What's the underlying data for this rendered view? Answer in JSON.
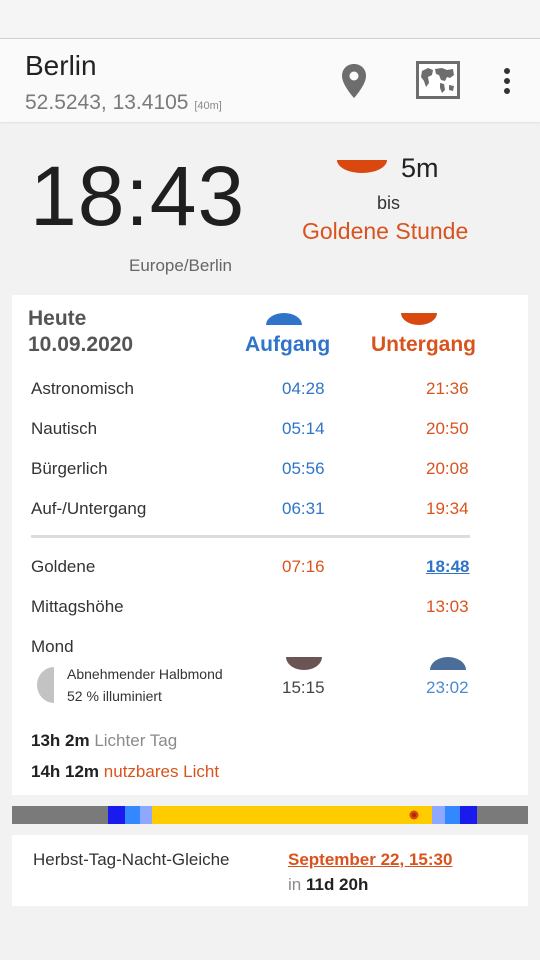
{
  "location": {
    "name": "Berlin",
    "coords": "52.5243, 13.4105",
    "altitude": "[40m]"
  },
  "toolbar": {
    "icons": [
      "location-pin-icon",
      "world-map-icon",
      "overflow-menu-icon"
    ]
  },
  "clock": {
    "time": "18:43",
    "timezone": "Europe/Berlin"
  },
  "next_event": {
    "countdown": "5m",
    "connector": "bis",
    "name": "Goldene Stunde"
  },
  "table": {
    "heute": "Heute",
    "date": "10.09.2020",
    "rise_header": "Aufgang",
    "set_header": "Untergang",
    "rows": [
      {
        "label": "Astronomisch",
        "rise": "04:28",
        "set": "21:36"
      },
      {
        "label": "Nautisch",
        "rise": "05:14",
        "set": "20:50"
      },
      {
        "label": "Bürgerlich",
        "rise": "05:56",
        "set": "20:08"
      },
      {
        "label": "Auf-/Untergang",
        "rise": "06:31",
        "set": "19:34"
      },
      {
        "label": "Goldene",
        "rise": "07:16",
        "set": "18:48"
      },
      {
        "label": "Mittagshöhe",
        "rise": "",
        "set": "13:03"
      }
    ],
    "moon": {
      "label": "Mond",
      "phase": "Abnehmender Halbmond",
      "illumination": "52 % illuminiert",
      "rise": "15:15",
      "set": "23:02"
    },
    "day_length": {
      "value": "13h 2m",
      "label": "Lichter Tag"
    },
    "usable_light": {
      "value": "14h 12m",
      "label": "nutzbares Licht"
    }
  },
  "colors": {
    "sunrise": "#2f74c8",
    "sunset": "#d9531e",
    "day": "#ffcc00",
    "night": "#7a7a7a",
    "blue_hour": "#1a1aee",
    "moon": "#6b5454"
  },
  "equinox": {
    "label": "Herbst-Tag-Nacht-Gleiche",
    "date": "September 22, 15:30",
    "in_prefix": "in",
    "in_value": "11d 20h"
  }
}
